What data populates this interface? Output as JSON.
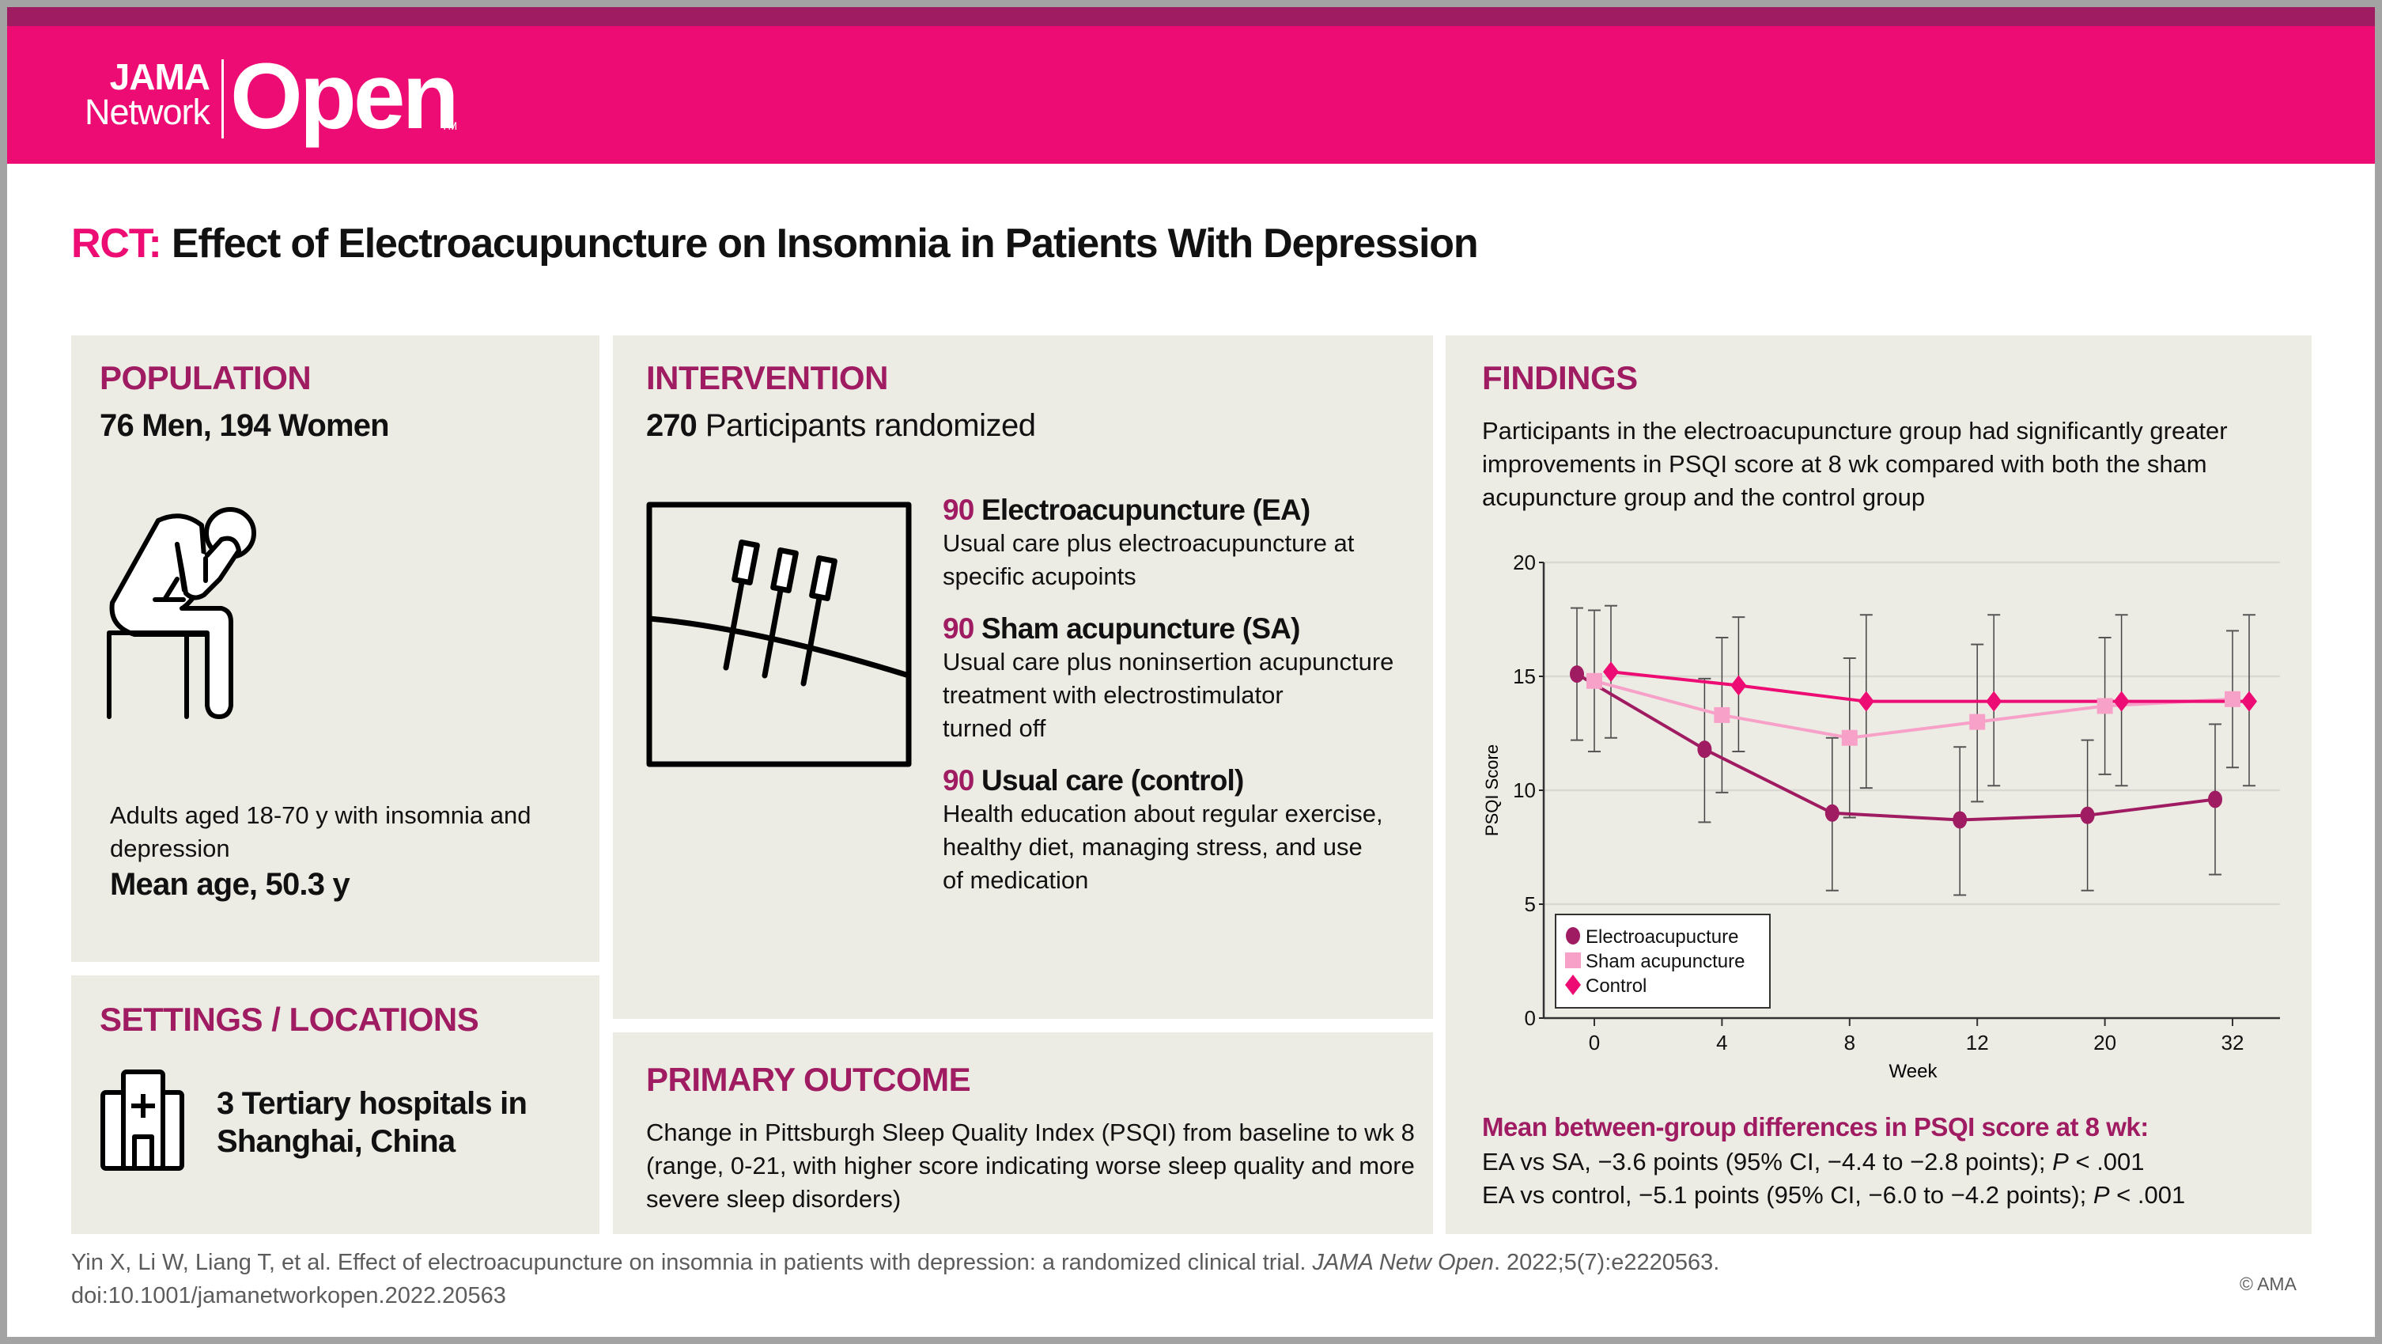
{
  "brand": {
    "logo_line1": "JAMA",
    "logo_line2": "Network",
    "logo_main": "Open",
    "logo_tm": "TM",
    "colors": {
      "header": "#ec0c73",
      "strip": "#a01c62",
      "accent": "#a01c62",
      "panel": "#edece4"
    }
  },
  "title": {
    "prefix": "RCT:",
    "text": "Effect of Electroacupuncture on Insomnia in Patients With Depression"
  },
  "population": {
    "heading": "POPULATION",
    "summary": "76 Men, 194 Women",
    "icon": "seated-person-icon",
    "description": "Adults aged 18-70 y with insomnia and depression",
    "mean_age": "Mean age, 50.3 y"
  },
  "settings": {
    "heading": "SETTINGS / LOCATIONS",
    "icon": "hospital-icon",
    "text_line1": "3 Tertiary hospitals in",
    "text_line2": "Shanghai, China"
  },
  "intervention": {
    "heading": "INTERVENTION",
    "total": "270",
    "total_label": "Participants randomized",
    "icon": "acupuncture-needles-icon",
    "arms": [
      {
        "n": "90",
        "name": "Electroacupuncture (EA)",
        "desc_lines": [
          "Usual care plus electroacupuncture at",
          "specific acupoints"
        ]
      },
      {
        "n": "90",
        "name": "Sham acupuncture (SA)",
        "desc_lines": [
          "Usual care plus noninsertion acupuncture",
          "treatment with electrostimulator",
          "turned off"
        ]
      },
      {
        "n": "90",
        "name": "Usual care (control)",
        "desc_lines": [
          "Health education about regular exercise,",
          "healthy diet, managing stress, and use",
          "of medication"
        ]
      }
    ]
  },
  "primary_outcome": {
    "heading": "PRIMARY OUTCOME",
    "lines": [
      "Change in Pittsburgh Sleep Quality Index (PSQI) from baseline to wk 8",
      "(range, 0-21, with higher score indicating worse sleep quality and more",
      "severe sleep disorders)"
    ]
  },
  "findings": {
    "heading": "FINDINGS",
    "summary_lines": [
      "Participants in the electroacupuncture group had significantly greater",
      "improvements in PSQI score at 8 wk compared with both the sham",
      "acupuncture group and the control group"
    ],
    "differences_heading": "Mean between-group differences in PSQI score at 8 wk:",
    "differences": [
      {
        "text": "EA vs SA, −3.6 points (95% CI, −4.4 to −2.8 points); ",
        "p_label": "P",
        "p_value": " < .001"
      },
      {
        "text": "EA vs control, −5.1 points (95% CI, −6.0 to −4.2 points); ",
        "p_label": "P",
        "p_value": " < .001"
      }
    ]
  },
  "chart_data": {
    "type": "line",
    "title": "",
    "xlabel": "Week",
    "ylabel": "PSQI Score",
    "categories": [
      "0",
      "4",
      "8",
      "12",
      "20",
      "32"
    ],
    "ylim": [
      0,
      20
    ],
    "yticks": [
      0,
      5,
      10,
      15,
      20
    ],
    "grid": true,
    "legend_position": "bottom-left",
    "series": [
      {
        "name": "Electroacupucture",
        "marker": "circle",
        "color": "#a01c62",
        "values": [
          15.1,
          11.8,
          9.0,
          8.7,
          8.9,
          9.6
        ],
        "upper": [
          18.0,
          14.9,
          12.3,
          11.9,
          12.2,
          12.9
        ],
        "lower": [
          12.2,
          8.6,
          5.6,
          5.4,
          5.6,
          6.3
        ]
      },
      {
        "name": "Sham acupuncture",
        "marker": "square",
        "color": "#f7a1c9",
        "values": [
          14.8,
          13.3,
          12.3,
          13.0,
          13.7,
          14.0
        ],
        "upper": [
          17.9,
          16.7,
          15.8,
          16.4,
          16.7,
          17.0
        ],
        "lower": [
          11.7,
          9.9,
          8.8,
          9.5,
          10.7,
          11.0
        ]
      },
      {
        "name": "Control",
        "marker": "diamond",
        "color": "#ec0c73",
        "values": [
          15.2,
          14.6,
          13.9,
          13.9,
          13.9,
          13.9
        ],
        "upper": [
          18.1,
          17.6,
          17.7,
          17.7,
          17.7,
          17.7
        ],
        "lower": [
          12.3,
          11.7,
          10.1,
          10.2,
          10.2,
          10.2
        ]
      }
    ]
  },
  "footer": {
    "citation_line1_a": "Yin X, Li W, Liang T, et al. Effect of electroacupuncture on insomnia in patients with depression: a randomized clinical trial. ",
    "citation_journal": "JAMA Netw Open",
    "citation_line1_b": ". 2022;5(7):e2220563.",
    "citation_line2": "doi:10.1001/jamanetworkopen.2022.20563",
    "copyright": "© AMA"
  }
}
